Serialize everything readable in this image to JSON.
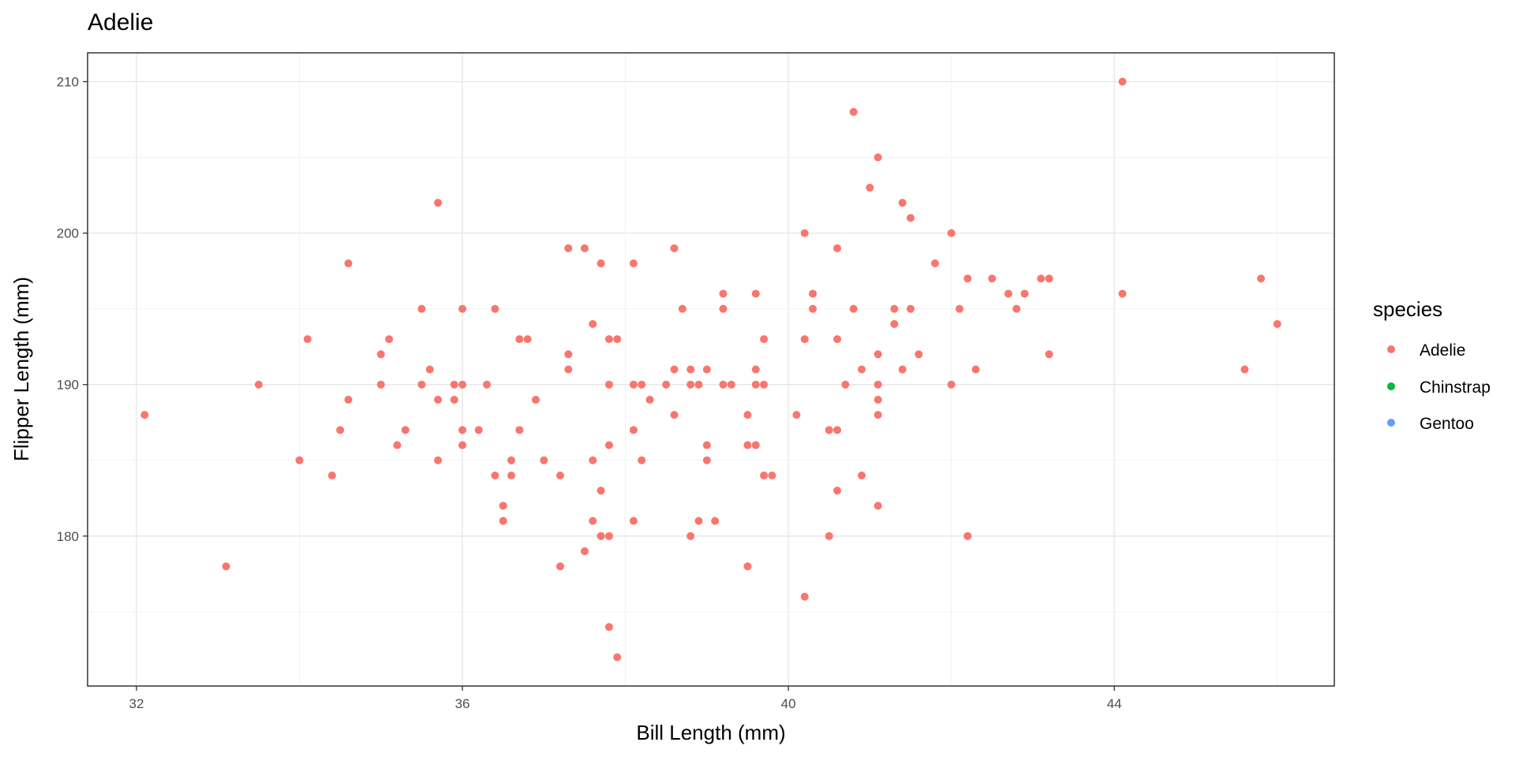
{
  "chart_data": {
    "type": "scatter",
    "title": "Adelie",
    "xlabel": "Bill Length (mm)",
    "ylabel": "Flipper Length (mm)",
    "xlim": [
      31.4,
      46.7
    ],
    "ylim": [
      170.1,
      211.9
    ],
    "x_ticks": [
      32,
      36,
      40,
      44
    ],
    "y_ticks": [
      180,
      190,
      200,
      210
    ],
    "x_minor": [
      34,
      38,
      42,
      46
    ],
    "y_minor": [
      175,
      185,
      195,
      205
    ],
    "grid": true,
    "legend": {
      "title": "species",
      "position": "right",
      "entries": [
        {
          "label": "Adelie",
          "color": "#F8766D"
        },
        {
          "label": "Chinstrap",
          "color": "#00BA38"
        },
        {
          "label": "Gentoo",
          "color": "#619CFF"
        }
      ]
    },
    "series": [
      {
        "name": "Adelie",
        "color": "#F8766D",
        "points": [
          [
            32.1,
            188
          ],
          [
            33.1,
            178
          ],
          [
            33.5,
            190
          ],
          [
            34.0,
            185
          ],
          [
            34.1,
            193
          ],
          [
            34.4,
            184
          ],
          [
            34.5,
            187
          ],
          [
            34.6,
            189
          ],
          [
            34.6,
            198
          ],
          [
            35.0,
            190
          ],
          [
            35.0,
            192
          ],
          [
            35.1,
            193
          ],
          [
            35.2,
            186
          ],
          [
            35.3,
            187
          ],
          [
            35.5,
            190
          ],
          [
            35.5,
            195
          ],
          [
            35.6,
            191
          ],
          [
            35.7,
            189
          ],
          [
            35.7,
            185
          ],
          [
            35.7,
            202
          ],
          [
            35.9,
            190
          ],
          [
            35.9,
            189
          ],
          [
            36.0,
            190
          ],
          [
            36.0,
            195
          ],
          [
            36.0,
            187
          ],
          [
            36.0,
            186
          ],
          [
            36.2,
            187
          ],
          [
            36.3,
            190
          ],
          [
            36.4,
            195
          ],
          [
            36.4,
            184
          ],
          [
            36.5,
            182
          ],
          [
            36.5,
            181
          ],
          [
            36.6,
            185
          ],
          [
            36.6,
            184
          ],
          [
            36.7,
            193
          ],
          [
            36.7,
            187
          ],
          [
            36.8,
            193
          ],
          [
            36.9,
            189
          ],
          [
            37.0,
            185
          ],
          [
            37.2,
            184
          ],
          [
            37.2,
            178
          ],
          [
            37.3,
            199
          ],
          [
            37.3,
            192
          ],
          [
            37.3,
            191
          ],
          [
            37.5,
            199
          ],
          [
            37.5,
            179
          ],
          [
            37.6,
            194
          ],
          [
            37.6,
            185
          ],
          [
            37.6,
            181
          ],
          [
            37.7,
            198
          ],
          [
            37.7,
            183
          ],
          [
            37.7,
            180
          ],
          [
            37.8,
            193
          ],
          [
            37.8,
            190
          ],
          [
            37.8,
            186
          ],
          [
            37.8,
            180
          ],
          [
            37.8,
            174
          ],
          [
            37.9,
            193
          ],
          [
            37.9,
            172
          ],
          [
            38.1,
            198
          ],
          [
            38.1,
            190
          ],
          [
            38.1,
            187
          ],
          [
            38.1,
            181
          ],
          [
            38.2,
            190
          ],
          [
            38.2,
            185
          ],
          [
            38.3,
            189
          ],
          [
            38.5,
            190
          ],
          [
            38.6,
            199
          ],
          [
            38.6,
            191
          ],
          [
            38.6,
            188
          ],
          [
            38.7,
            195
          ],
          [
            38.8,
            191
          ],
          [
            38.8,
            190
          ],
          [
            38.8,
            180
          ],
          [
            38.9,
            190
          ],
          [
            38.9,
            181
          ],
          [
            39.0,
            191
          ],
          [
            39.0,
            186
          ],
          [
            39.0,
            185
          ],
          [
            39.1,
            181
          ],
          [
            39.2,
            196
          ],
          [
            39.2,
            195
          ],
          [
            39.2,
            190
          ],
          [
            39.3,
            190
          ],
          [
            39.5,
            188
          ],
          [
            39.5,
            186
          ],
          [
            39.5,
            178
          ],
          [
            39.6,
            196
          ],
          [
            39.6,
            191
          ],
          [
            39.6,
            190
          ],
          [
            39.6,
            186
          ],
          [
            39.7,
            193
          ],
          [
            39.7,
            190
          ],
          [
            39.7,
            184
          ],
          [
            39.8,
            184
          ],
          [
            40.1,
            188
          ],
          [
            40.2,
            200
          ],
          [
            40.2,
            193
          ],
          [
            40.2,
            176
          ],
          [
            40.3,
            196
          ],
          [
            40.3,
            195
          ],
          [
            40.5,
            187
          ],
          [
            40.5,
            180
          ],
          [
            40.6,
            199
          ],
          [
            40.6,
            193
          ],
          [
            40.6,
            187
          ],
          [
            40.6,
            183
          ],
          [
            40.7,
            190
          ],
          [
            40.8,
            208
          ],
          [
            40.8,
            195
          ],
          [
            40.9,
            191
          ],
          [
            40.9,
            184
          ],
          [
            41.0,
            203
          ],
          [
            41.1,
            205
          ],
          [
            41.1,
            192
          ],
          [
            41.1,
            190
          ],
          [
            41.1,
            189
          ],
          [
            41.1,
            188
          ],
          [
            41.1,
            182
          ],
          [
            41.3,
            195
          ],
          [
            41.3,
            194
          ],
          [
            41.4,
            202
          ],
          [
            41.4,
            191
          ],
          [
            41.5,
            201
          ],
          [
            41.5,
            195
          ],
          [
            41.6,
            192
          ],
          [
            41.8,
            198
          ],
          [
            42.0,
            200
          ],
          [
            42.0,
            190
          ],
          [
            42.1,
            195
          ],
          [
            42.2,
            197
          ],
          [
            42.2,
            180
          ],
          [
            42.3,
            191
          ],
          [
            42.5,
            197
          ],
          [
            42.7,
            196
          ],
          [
            42.8,
            195
          ],
          [
            42.9,
            196
          ],
          [
            43.1,
            197
          ],
          [
            43.2,
            197
          ],
          [
            43.2,
            192
          ],
          [
            44.1,
            210
          ],
          [
            44.1,
            196
          ],
          [
            45.6,
            191
          ],
          [
            45.8,
            197
          ],
          [
            46.0,
            194
          ]
        ]
      }
    ]
  }
}
